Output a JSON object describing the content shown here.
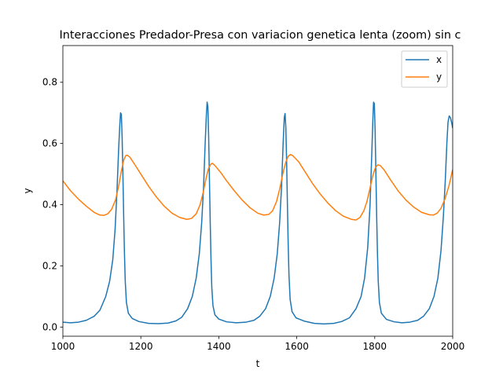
{
  "chart_data": {
    "type": "line",
    "title": "Interacciones Predador-Presa con variacion genetica lenta (zoom) sin c",
    "xlabel": "t",
    "ylabel": "y",
    "xlim": [
      1000,
      2000
    ],
    "ylim": [
      -0.03,
      0.92
    ],
    "xticks": [
      "1000",
      "1200",
      "1400",
      "1600",
      "1800",
      "2000"
    ],
    "yticks": [
      "0.0",
      "0.2",
      "0.4",
      "0.6",
      "0.8"
    ],
    "grid": false,
    "legend_position": "top-right",
    "series": [
      {
        "name": "x",
        "color": "#1f77b4",
        "points": [
          [
            1000,
            0.016
          ],
          [
            1020,
            0.014
          ],
          [
            1040,
            0.016
          ],
          [
            1060,
            0.022
          ],
          [
            1080,
            0.035
          ],
          [
            1095,
            0.055
          ],
          [
            1110,
            0.1
          ],
          [
            1120,
            0.15
          ],
          [
            1128,
            0.22
          ],
          [
            1134,
            0.32
          ],
          [
            1139,
            0.45
          ],
          [
            1143,
            0.58
          ],
          [
            1146,
            0.66
          ],
          [
            1148,
            0.7
          ],
          [
            1150,
            0.695
          ],
          [
            1152,
            0.62
          ],
          [
            1154,
            0.5
          ],
          [
            1156,
            0.36
          ],
          [
            1158,
            0.24
          ],
          [
            1160,
            0.15
          ],
          [
            1163,
            0.08
          ],
          [
            1168,
            0.045
          ],
          [
            1178,
            0.028
          ],
          [
            1195,
            0.018
          ],
          [
            1220,
            0.012
          ],
          [
            1245,
            0.011
          ],
          [
            1270,
            0.013
          ],
          [
            1290,
            0.02
          ],
          [
            1305,
            0.032
          ],
          [
            1320,
            0.06
          ],
          [
            1332,
            0.1
          ],
          [
            1342,
            0.16
          ],
          [
            1350,
            0.24
          ],
          [
            1356,
            0.34
          ],
          [
            1361,
            0.46
          ],
          [
            1365,
            0.6
          ],
          [
            1368,
            0.69
          ],
          [
            1370,
            0.735
          ],
          [
            1372,
            0.72
          ],
          [
            1374,
            0.62
          ],
          [
            1376,
            0.48
          ],
          [
            1378,
            0.34
          ],
          [
            1380,
            0.22
          ],
          [
            1382,
            0.13
          ],
          [
            1385,
            0.07
          ],
          [
            1390,
            0.04
          ],
          [
            1400,
            0.026
          ],
          [
            1420,
            0.017
          ],
          [
            1445,
            0.014
          ],
          [
            1470,
            0.016
          ],
          [
            1490,
            0.022
          ],
          [
            1505,
            0.035
          ],
          [
            1520,
            0.06
          ],
          [
            1532,
            0.1
          ],
          [
            1542,
            0.16
          ],
          [
            1550,
            0.24
          ],
          [
            1556,
            0.34
          ],
          [
            1561,
            0.46
          ],
          [
            1565,
            0.6
          ],
          [
            1568,
            0.685
          ],
          [
            1570,
            0.698
          ],
          [
            1572,
            0.65
          ],
          [
            1574,
            0.54
          ],
          [
            1576,
            0.4
          ],
          [
            1578,
            0.27
          ],
          [
            1580,
            0.17
          ],
          [
            1583,
            0.09
          ],
          [
            1588,
            0.05
          ],
          [
            1598,
            0.03
          ],
          [
            1620,
            0.019
          ],
          [
            1645,
            0.012
          ],
          [
            1670,
            0.01
          ],
          [
            1695,
            0.012
          ],
          [
            1715,
            0.018
          ],
          [
            1735,
            0.03
          ],
          [
            1752,
            0.06
          ],
          [
            1765,
            0.1
          ],
          [
            1774,
            0.16
          ],
          [
            1782,
            0.26
          ],
          [
            1788,
            0.4
          ],
          [
            1792,
            0.55
          ],
          [
            1795,
            0.67
          ],
          [
            1797,
            0.735
          ],
          [
            1799,
            0.73
          ],
          [
            1801,
            0.64
          ],
          [
            1803,
            0.5
          ],
          [
            1805,
            0.36
          ],
          [
            1807,
            0.24
          ],
          [
            1809,
            0.15
          ],
          [
            1812,
            0.08
          ],
          [
            1817,
            0.045
          ],
          [
            1830,
            0.025
          ],
          [
            1850,
            0.017
          ],
          [
            1870,
            0.014
          ],
          [
            1890,
            0.016
          ],
          [
            1910,
            0.022
          ],
          [
            1925,
            0.035
          ],
          [
            1940,
            0.06
          ],
          [
            1952,
            0.1
          ],
          [
            1962,
            0.16
          ],
          [
            1970,
            0.25
          ],
          [
            1976,
            0.36
          ],
          [
            1981,
            0.48
          ],
          [
            1985,
            0.6
          ],
          [
            1988,
            0.67
          ],
          [
            1991,
            0.69
          ],
          [
            1994,
            0.685
          ],
          [
            1997,
            0.67
          ],
          [
            2000,
            0.65
          ]
        ]
      },
      {
        "name": "y",
        "color": "#ff7f0e",
        "points": [
          [
            1000,
            0.478
          ],
          [
            1020,
            0.445
          ],
          [
            1040,
            0.418
          ],
          [
            1060,
            0.395
          ],
          [
            1080,
            0.375
          ],
          [
            1095,
            0.366
          ],
          [
            1105,
            0.365
          ],
          [
            1115,
            0.37
          ],
          [
            1125,
            0.385
          ],
          [
            1135,
            0.415
          ],
          [
            1143,
            0.46
          ],
          [
            1150,
            0.51
          ],
          [
            1156,
            0.545
          ],
          [
            1161,
            0.56
          ],
          [
            1165,
            0.562
          ],
          [
            1172,
            0.555
          ],
          [
            1185,
            0.53
          ],
          [
            1200,
            0.5
          ],
          [
            1220,
            0.46
          ],
          [
            1240,
            0.425
          ],
          [
            1260,
            0.395
          ],
          [
            1280,
            0.372
          ],
          [
            1300,
            0.358
          ],
          [
            1318,
            0.352
          ],
          [
            1330,
            0.355
          ],
          [
            1342,
            0.37
          ],
          [
            1352,
            0.4
          ],
          [
            1360,
            0.44
          ],
          [
            1368,
            0.49
          ],
          [
            1374,
            0.52
          ],
          [
            1380,
            0.533
          ],
          [
            1384,
            0.535
          ],
          [
            1390,
            0.528
          ],
          [
            1405,
            0.505
          ],
          [
            1420,
            0.478
          ],
          [
            1440,
            0.445
          ],
          [
            1460,
            0.415
          ],
          [
            1480,
            0.39
          ],
          [
            1500,
            0.372
          ],
          [
            1515,
            0.366
          ],
          [
            1528,
            0.368
          ],
          [
            1538,
            0.38
          ],
          [
            1548,
            0.41
          ],
          [
            1556,
            0.45
          ],
          [
            1564,
            0.5
          ],
          [
            1572,
            0.54
          ],
          [
            1578,
            0.558
          ],
          [
            1584,
            0.564
          ],
          [
            1590,
            0.56
          ],
          [
            1605,
            0.54
          ],
          [
            1620,
            0.51
          ],
          [
            1640,
            0.47
          ],
          [
            1660,
            0.435
          ],
          [
            1680,
            0.405
          ],
          [
            1700,
            0.38
          ],
          [
            1720,
            0.362
          ],
          [
            1740,
            0.352
          ],
          [
            1752,
            0.35
          ],
          [
            1762,
            0.358
          ],
          [
            1772,
            0.38
          ],
          [
            1780,
            0.41
          ],
          [
            1788,
            0.455
          ],
          [
            1795,
            0.495
          ],
          [
            1802,
            0.522
          ],
          [
            1808,
            0.53
          ],
          [
            1814,
            0.528
          ],
          [
            1825,
            0.512
          ],
          [
            1840,
            0.482
          ],
          [
            1860,
            0.445
          ],
          [
            1880,
            0.415
          ],
          [
            1900,
            0.392
          ],
          [
            1920,
            0.375
          ],
          [
            1940,
            0.367
          ],
          [
            1950,
            0.366
          ],
          [
            1960,
            0.372
          ],
          [
            1970,
            0.388
          ],
          [
            1980,
            0.418
          ],
          [
            1990,
            0.46
          ],
          [
            2000,
            0.515
          ]
        ]
      }
    ]
  }
}
